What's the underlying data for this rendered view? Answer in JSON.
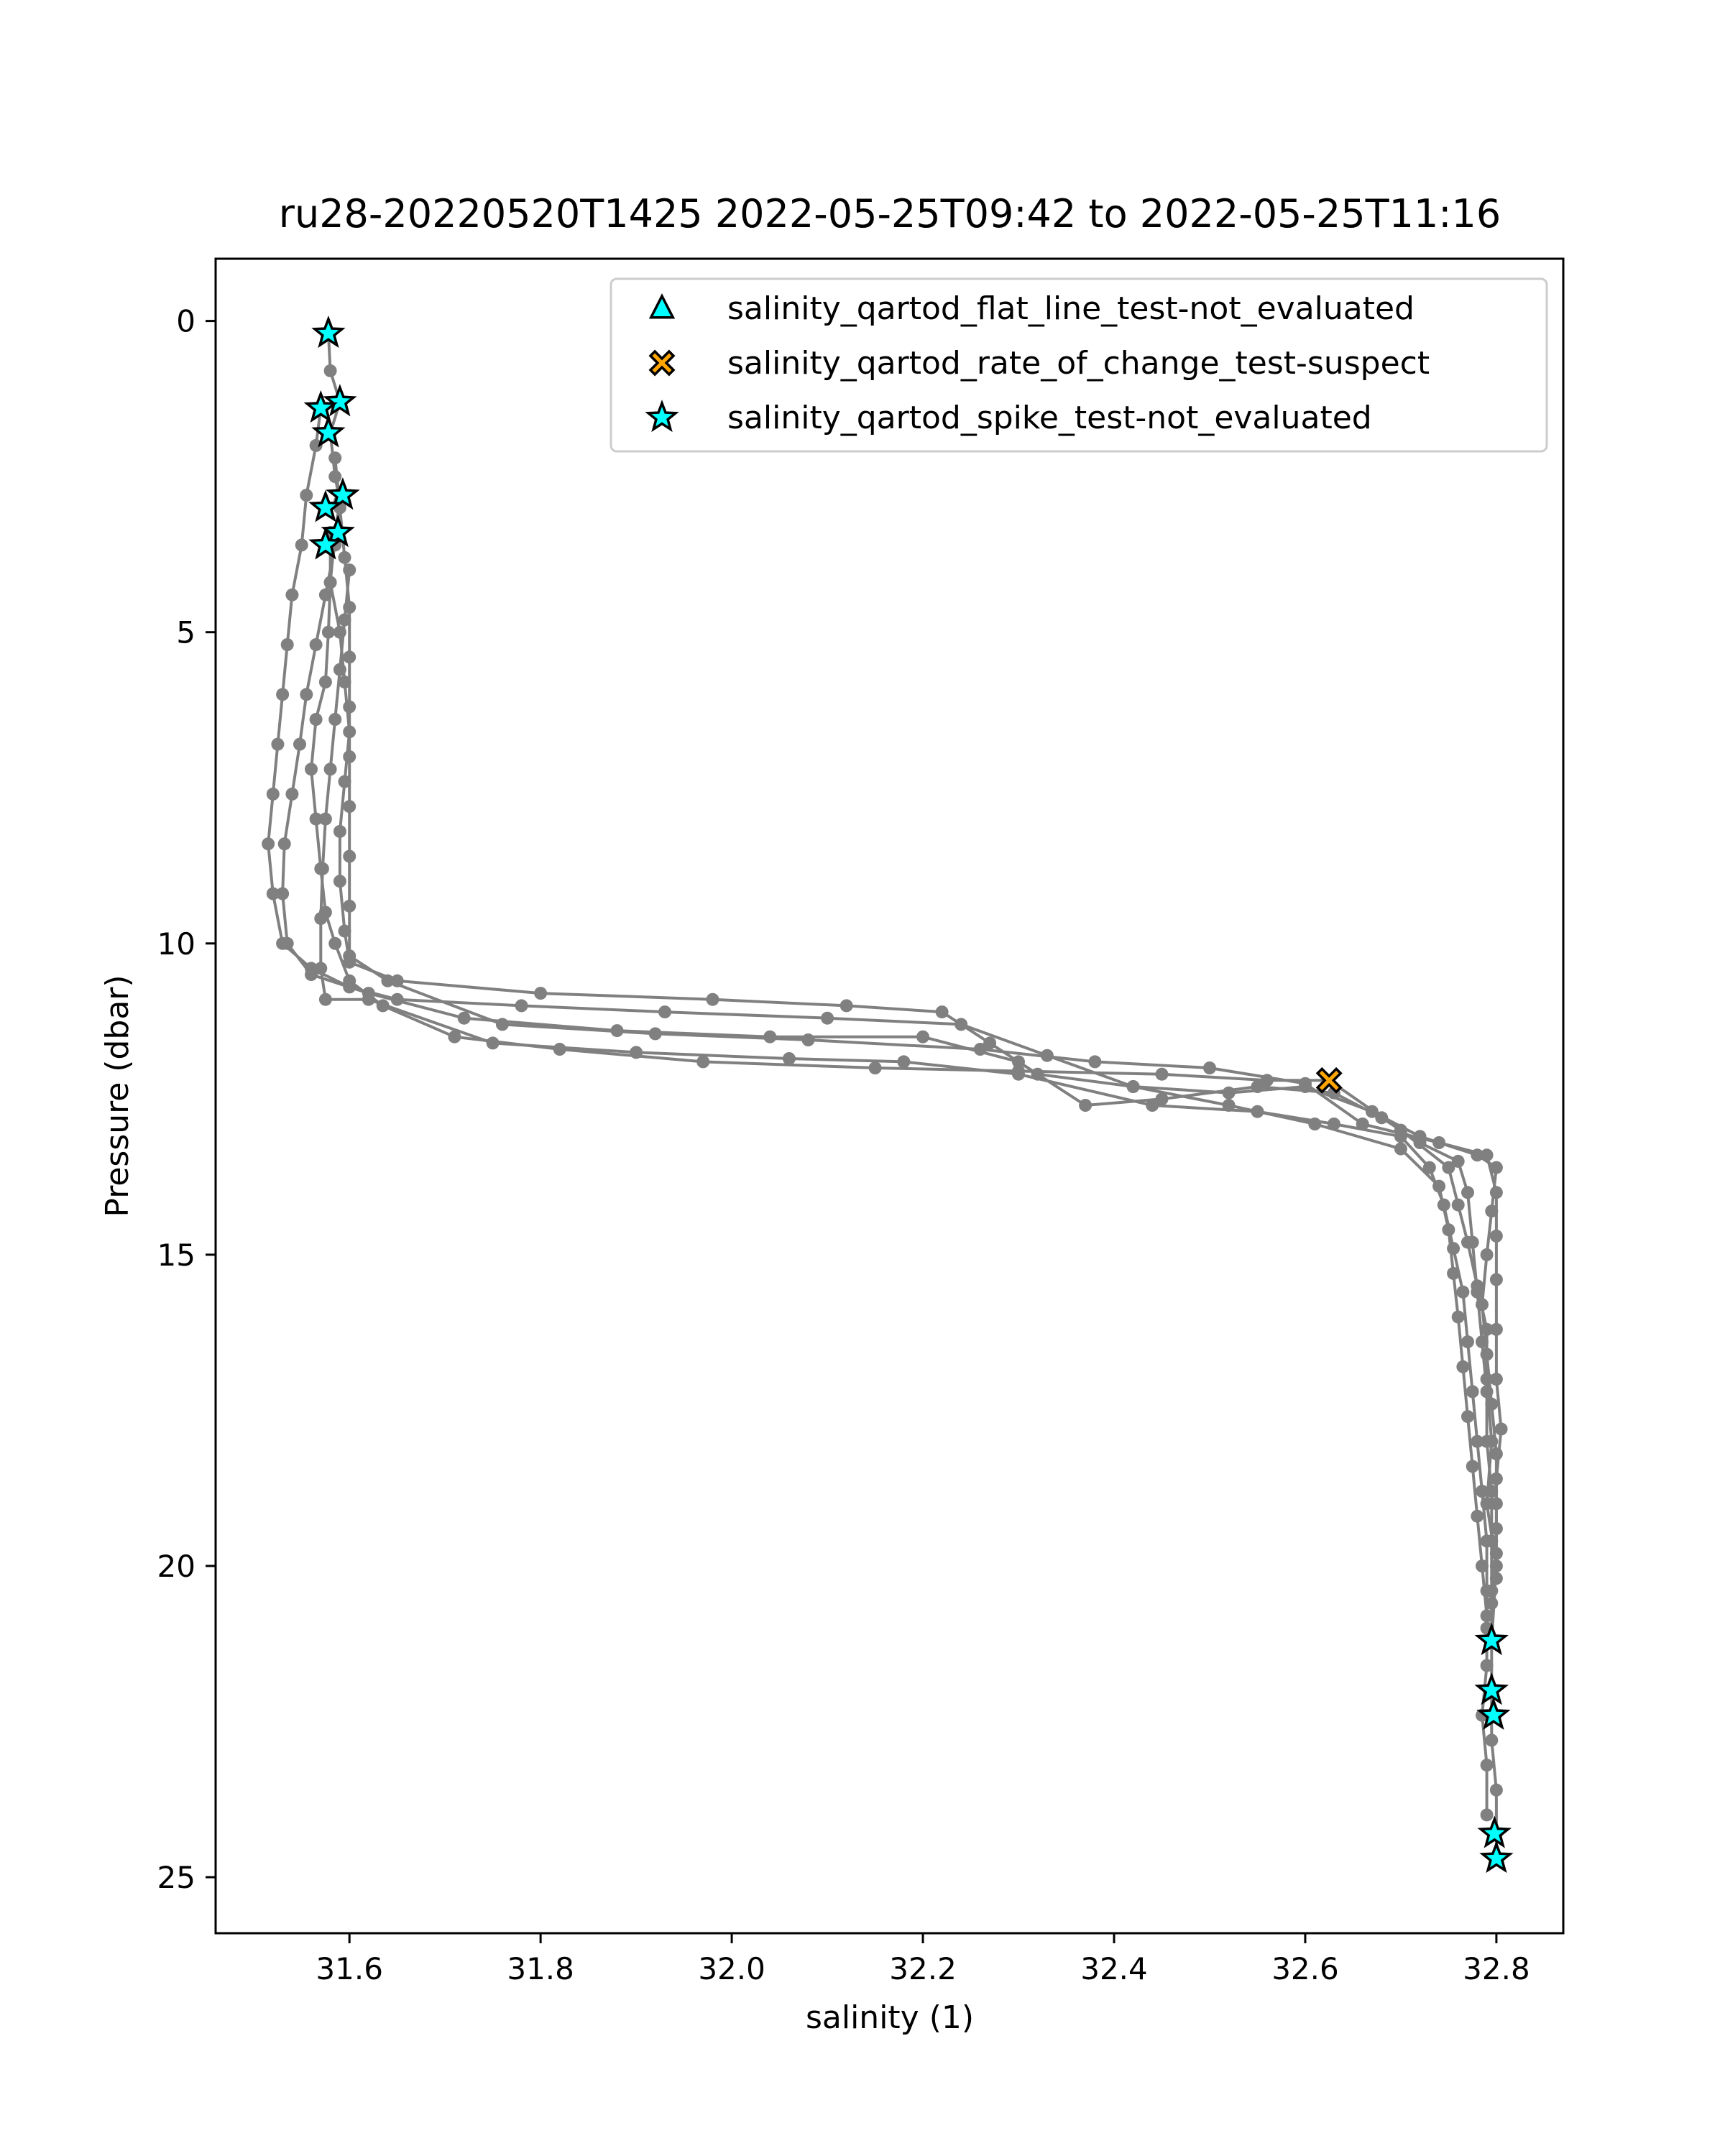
{
  "chart_data": {
    "type": "scatter",
    "title": "ru28-20220520T1425 2022-05-25T09:42 to 2022-05-25T11:16",
    "xlabel": "salinity (1)",
    "ylabel": "Pressure (dbar)",
    "xlim": [
      31.46,
      32.87
    ],
    "ylim": [
      25.9,
      -1.0
    ],
    "y_inverted": true,
    "grid": false,
    "legend_position": "top-right",
    "x_ticks": [
      31.6,
      31.8,
      32.0,
      32.2,
      32.4,
      32.6,
      32.8
    ],
    "x_tick_labels": [
      "31.6",
      "31.8",
      "32.0",
      "32.2",
      "32.4",
      "32.6",
      "32.8"
    ],
    "y_ticks": [
      0,
      5,
      10,
      15,
      20,
      25
    ],
    "y_tick_labels": [
      "0",
      "5",
      "10",
      "15",
      "20",
      "25"
    ],
    "colors": {
      "profile": "#808080",
      "flat_line": "#00ffff",
      "rate_of_change": "#ffa500",
      "spike": "#00ffff",
      "marker_edge": "#000000"
    },
    "profile_series": [
      [
        [
          31.578,
          0.2
        ],
        [
          31.58,
          0.8
        ],
        [
          31.59,
          1.3
        ],
        [
          31.58,
          1.8
        ],
        [
          31.585,
          2.5
        ],
        [
          31.59,
          2.9
        ],
        [
          31.585,
          3.4
        ],
        [
          31.58,
          4.2
        ],
        [
          31.578,
          5.0
        ],
        [
          31.575,
          5.8
        ],
        [
          31.565,
          6.4
        ],
        [
          31.56,
          7.2
        ],
        [
          31.565,
          8.0
        ],
        [
          31.57,
          8.8
        ],
        [
          31.575,
          9.5
        ],
        [
          31.585,
          10.0
        ],
        [
          31.6,
          10.6
        ],
        [
          31.635,
          11.0
        ],
        [
          31.71,
          11.5
        ],
        [
          31.82,
          11.7
        ],
        [
          31.97,
          11.9
        ],
        [
          32.15,
          12.0
        ],
        [
          32.3,
          12.05
        ],
        [
          32.45,
          12.1
        ],
        [
          32.56,
          12.2
        ],
        [
          32.625,
          12.2
        ],
        [
          32.7,
          13.0
        ],
        [
          32.75,
          13.6
        ],
        [
          32.76,
          14.2
        ],
        [
          32.77,
          14.8
        ],
        [
          32.78,
          15.5
        ],
        [
          32.79,
          16.2
        ],
        [
          32.79,
          17.0
        ],
        [
          32.795,
          18.0
        ],
        [
          32.79,
          19.0
        ],
        [
          32.8,
          20.0
        ],
        [
          32.795,
          21.2
        ],
        [
          32.795,
          22.0
        ],
        [
          32.795,
          22.8
        ],
        [
          32.8,
          23.6
        ],
        [
          32.8,
          24.3
        ],
        [
          32.8,
          24.7
        ]
      ],
      [
        [
          31.57,
          1.4
        ],
        [
          31.565,
          2.0
        ],
        [
          31.555,
          2.8
        ],
        [
          31.55,
          3.6
        ],
        [
          31.54,
          4.4
        ],
        [
          31.535,
          5.2
        ],
        [
          31.53,
          6.0
        ],
        [
          31.525,
          6.8
        ],
        [
          31.52,
          7.6
        ],
        [
          31.515,
          8.4
        ],
        [
          31.52,
          9.2
        ],
        [
          31.53,
          10.0
        ],
        [
          31.56,
          10.4
        ],
        [
          31.6,
          10.7
        ],
        [
          31.65,
          10.9
        ],
        [
          31.78,
          11.0
        ],
        [
          31.93,
          11.1
        ],
        [
          32.1,
          11.2
        ],
        [
          32.24,
          11.3
        ],
        [
          32.33,
          11.8
        ],
        [
          32.42,
          12.3
        ],
        [
          32.52,
          12.6
        ],
        [
          32.61,
          12.9
        ],
        [
          32.7,
          13.3
        ],
        [
          32.74,
          13.9
        ],
        [
          32.75,
          14.6
        ],
        [
          32.755,
          15.3
        ],
        [
          32.76,
          16.0
        ],
        [
          32.765,
          16.8
        ],
        [
          32.77,
          17.6
        ],
        [
          32.775,
          18.4
        ],
        [
          32.78,
          19.2
        ],
        [
          32.785,
          20.0
        ],
        [
          32.79,
          20.8
        ],
        [
          32.79,
          21.6
        ],
        [
          32.785,
          22.4
        ],
        [
          32.79,
          23.2
        ],
        [
          32.79,
          24.0
        ]
      ],
      [
        [
          31.59,
          2.9
        ],
        [
          31.585,
          3.6
        ],
        [
          31.575,
          4.4
        ],
        [
          31.565,
          5.2
        ],
        [
          31.555,
          6.0
        ],
        [
          31.548,
          6.8
        ],
        [
          31.54,
          7.6
        ],
        [
          31.532,
          8.4
        ],
        [
          31.53,
          9.2
        ],
        [
          31.535,
          10.0
        ],
        [
          31.56,
          10.5
        ],
        [
          31.62,
          10.8
        ],
        [
          31.72,
          11.2
        ],
        [
          31.88,
          11.4
        ],
        [
          32.04,
          11.5
        ],
        [
          32.2,
          11.5
        ],
        [
          32.3,
          11.9
        ],
        [
          32.37,
          12.6
        ],
        [
          32.45,
          12.5
        ],
        [
          32.55,
          12.3
        ],
        [
          32.63,
          12.4
        ],
        [
          32.68,
          12.8
        ],
        [
          32.72,
          13.2
        ],
        [
          32.76,
          13.5
        ],
        [
          32.77,
          14.0
        ],
        [
          32.775,
          14.8
        ],
        [
          32.78,
          15.6
        ],
        [
          32.785,
          16.4
        ],
        [
          32.79,
          17.2
        ],
        [
          32.79,
          18.0
        ],
        [
          32.795,
          18.8
        ],
        [
          32.795,
          19.6
        ],
        [
          32.795,
          20.4
        ],
        [
          32.795,
          21.2
        ]
      ],
      [
        [
          31.58,
          3.4
        ],
        [
          31.58,
          4.2
        ],
        [
          31.59,
          5.0
        ],
        [
          31.595,
          5.8
        ],
        [
          31.6,
          6.6
        ],
        [
          31.595,
          7.4
        ],
        [
          31.59,
          8.2
        ],
        [
          31.59,
          9.0
        ],
        [
          31.595,
          9.8
        ],
        [
          31.6,
          10.3
        ],
        [
          31.65,
          10.6
        ],
        [
          31.8,
          10.8
        ],
        [
          31.98,
          10.9
        ],
        [
          32.12,
          11.0
        ],
        [
          32.22,
          11.1
        ],
        [
          32.27,
          11.6
        ],
        [
          32.32,
          12.1
        ],
        [
          32.42,
          12.3
        ],
        [
          32.52,
          12.4
        ],
        [
          32.6,
          12.3
        ],
        [
          32.67,
          12.7
        ],
        [
          32.72,
          13.1
        ],
        [
          32.78,
          13.4
        ],
        [
          32.8,
          13.6
        ],
        [
          32.795,
          14.3
        ],
        [
          32.79,
          15.0
        ],
        [
          32.785,
          15.8
        ],
        [
          32.79,
          16.6
        ],
        [
          32.795,
          17.4
        ],
        [
          32.8,
          18.2
        ],
        [
          32.8,
          19.0
        ],
        [
          32.8,
          19.8
        ],
        [
          32.795,
          20.6
        ]
      ],
      [
        [
          31.6,
          4.0
        ],
        [
          31.595,
          4.8
        ],
        [
          31.59,
          5.6
        ],
        [
          31.585,
          6.4
        ],
        [
          31.58,
          7.2
        ],
        [
          31.575,
          8.0
        ],
        [
          31.572,
          8.8
        ],
        [
          31.57,
          9.6
        ],
        [
          31.57,
          10.4
        ],
        [
          31.575,
          10.9
        ],
        [
          31.62,
          10.9
        ],
        [
          31.75,
          11.6
        ],
        [
          31.9,
          11.75
        ],
        [
          32.06,
          11.85
        ],
        [
          32.18,
          11.9
        ],
        [
          32.3,
          12.1
        ],
        [
          32.44,
          12.6
        ],
        [
          32.55,
          12.7
        ],
        [
          32.63,
          12.9
        ],
        [
          32.7,
          13.1
        ],
        [
          32.73,
          13.6
        ],
        [
          32.745,
          14.2
        ],
        [
          32.755,
          14.9
        ],
        [
          32.765,
          15.6
        ],
        [
          32.77,
          16.4
        ],
        [
          32.775,
          17.2
        ],
        [
          32.78,
          18.0
        ],
        [
          32.785,
          18.8
        ],
        [
          32.79,
          19.6
        ],
        [
          32.79,
          20.4
        ],
        [
          32.79,
          21.0
        ]
      ],
      [
        [
          31.585,
          2.2
        ],
        [
          31.59,
          3.0
        ],
        [
          31.595,
          3.8
        ],
        [
          31.6,
          4.6
        ],
        [
          31.6,
          5.4
        ],
        [
          31.6,
          6.2
        ],
        [
          31.6,
          7.0
        ],
        [
          31.6,
          7.8
        ],
        [
          31.6,
          8.6
        ],
        [
          31.6,
          9.4
        ],
        [
          31.6,
          10.2
        ],
        [
          31.64,
          10.6
        ],
        [
          31.76,
          11.3
        ],
        [
          31.92,
          11.45
        ],
        [
          32.08,
          11.55
        ],
        [
          32.26,
          11.7
        ],
        [
          32.38,
          11.9
        ],
        [
          32.5,
          12.0
        ],
        [
          32.6,
          12.25
        ],
        [
          32.66,
          12.9
        ],
        [
          32.74,
          13.2
        ],
        [
          32.79,
          13.4
        ],
        [
          32.8,
          14.0
        ],
        [
          32.8,
          14.7
        ],
        [
          32.8,
          15.4
        ],
        [
          32.8,
          16.2
        ],
        [
          32.8,
          17.0
        ],
        [
          32.805,
          17.8
        ],
        [
          32.8,
          18.6
        ],
        [
          32.8,
          19.4
        ],
        [
          32.8,
          20.2
        ]
      ]
    ],
    "series": [
      {
        "name": "salinity_qartod_flat_line_test-not_evaluated",
        "marker": "triangle",
        "points": []
      },
      {
        "name": "salinity_qartod_rate_of_change_test-suspect",
        "marker": "x",
        "points": [
          [
            32.625,
            12.2
          ]
        ]
      },
      {
        "name": "salinity_qartod_spike_test-not_evaluated",
        "marker": "star",
        "points": [
          [
            31.578,
            0.2
          ],
          [
            31.59,
            1.3
          ],
          [
            31.57,
            1.4
          ],
          [
            31.578,
            1.8
          ],
          [
            31.593,
            2.8
          ],
          [
            31.575,
            3.0
          ],
          [
            31.588,
            3.4
          ],
          [
            31.575,
            3.6
          ],
          [
            32.795,
            21.2
          ],
          [
            32.795,
            22.0
          ],
          [
            32.797,
            22.4
          ],
          [
            32.798,
            24.3
          ],
          [
            32.8,
            24.7
          ]
        ]
      }
    ]
  }
}
